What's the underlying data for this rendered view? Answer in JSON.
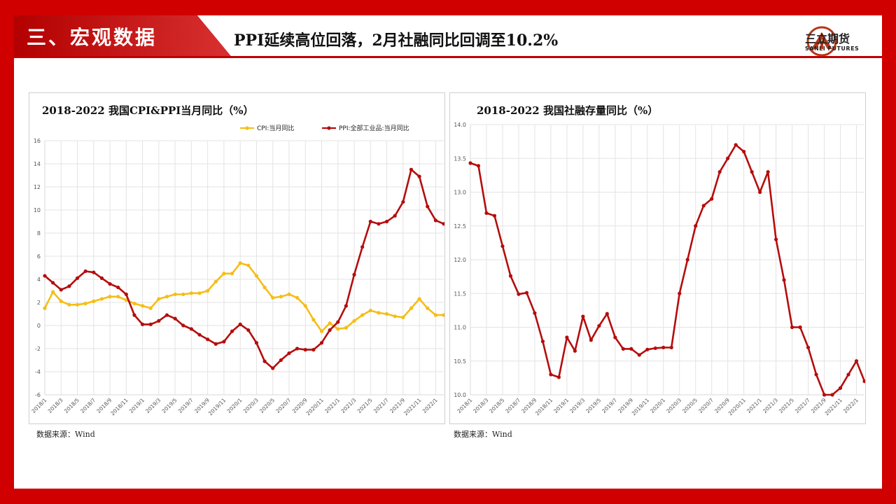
{
  "header": {
    "section_title": "三、宏观数据",
    "headline": "PPI延续高位回落，2月社融同比回调至10.2%",
    "logo_cn": "三立期货",
    "logo_en": "SANLI FUTURES"
  },
  "colors": {
    "brand_red": "#c00000",
    "cpi": "#f5be16",
    "ppi": "#b50d0d",
    "tsf": "#b50d0d"
  },
  "left_panel": {
    "source": "数据来源：Wind"
  },
  "right_panel": {
    "source": "数据来源：Wind"
  },
  "chart_data": [
    {
      "type": "line",
      "title": "2018-2022 我国CPI&PPI当月同比（%）",
      "x": [
        "2018/1",
        "2018/2",
        "2018/3",
        "2018/4",
        "2018/5",
        "2018/6",
        "2018/7",
        "2018/8",
        "2018/9",
        "2018/10",
        "2018/11",
        "2018/12",
        "2019/1",
        "2019/2",
        "2019/3",
        "2019/4",
        "2019/5",
        "2019/6",
        "2019/7",
        "2019/8",
        "2019/9",
        "2019/10",
        "2019/11",
        "2019/12",
        "2020/1",
        "2020/2",
        "2020/3",
        "2020/4",
        "2020/5",
        "2020/6",
        "2020/7",
        "2020/8",
        "2020/9",
        "2020/10",
        "2020/11",
        "2020/12",
        "2021/1",
        "2021/2",
        "2021/3",
        "2021/4",
        "2021/5",
        "2021/6",
        "2021/7",
        "2021/8",
        "2021/9",
        "2021/10",
        "2021/11",
        "2021/12",
        "2022/1",
        "2022/2"
      ],
      "xticks": [
        "2018/1",
        "2018/3",
        "2018/5",
        "2018/7",
        "2018/9",
        "2018/11",
        "2019/1",
        "2019/3",
        "2019/5",
        "2019/7",
        "2019/9",
        "2019/11",
        "2020/1",
        "2020/3",
        "2020/5",
        "2020/7",
        "2020/9",
        "2020/11",
        "2021/1",
        "2021/3",
        "2021/5",
        "2021/7",
        "2021/9",
        "2021/11",
        "2022/1"
      ],
      "ylim": [
        -6,
        16
      ],
      "yticks": [
        -6,
        -4,
        -2,
        0,
        2,
        4,
        6,
        8,
        10,
        12,
        14,
        16
      ],
      "grid": true,
      "legend": "top-right",
      "series": [
        {
          "name": "CPI:当月同比",
          "color": "#f5be16",
          "values": [
            1.5,
            2.9,
            2.1,
            1.8,
            1.8,
            1.9,
            2.1,
            2.3,
            2.5,
            2.5,
            2.2,
            1.9,
            1.7,
            1.5,
            2.3,
            2.5,
            2.7,
            2.7,
            2.8,
            2.8,
            3.0,
            3.8,
            4.5,
            4.5,
            5.4,
            5.2,
            4.3,
            3.3,
            2.4,
            2.5,
            2.7,
            2.4,
            1.7,
            0.5,
            -0.5,
            0.2,
            -0.3,
            -0.2,
            0.4,
            0.9,
            1.3,
            1.1,
            1.0,
            0.8,
            0.7,
            1.5,
            2.3,
            1.5,
            0.9,
            0.9
          ]
        },
        {
          "name": "PPI:全部工业品:当月同比",
          "color": "#b50d0d",
          "values": [
            4.3,
            3.7,
            3.1,
            3.4,
            4.1,
            4.7,
            4.6,
            4.1,
            3.6,
            3.3,
            2.7,
            0.9,
            0.1,
            0.1,
            0.4,
            0.9,
            0.6,
            0.0,
            -0.3,
            -0.8,
            -1.2,
            -1.6,
            -1.4,
            -0.5,
            0.1,
            -0.4,
            -1.5,
            -3.1,
            -3.7,
            -3.0,
            -2.4,
            -2.0,
            -2.1,
            -2.1,
            -1.5,
            -0.4,
            0.3,
            1.7,
            4.4,
            6.8,
            9.0,
            8.8,
            9.0,
            9.5,
            10.7,
            13.5,
            12.9,
            10.3,
            9.1,
            8.8
          ]
        }
      ]
    },
    {
      "type": "line",
      "title": "2018-2022 我国社融存量同比（%）",
      "x": [
        "2018/1",
        "2018/2",
        "2018/3",
        "2018/4",
        "2018/5",
        "2018/6",
        "2018/7",
        "2018/8",
        "2018/9",
        "2018/10",
        "2018/11",
        "2018/12",
        "2019/1",
        "2019/2",
        "2019/3",
        "2019/4",
        "2019/5",
        "2019/6",
        "2019/7",
        "2019/8",
        "2019/9",
        "2019/10",
        "2019/11",
        "2019/12",
        "2020/1",
        "2020/2",
        "2020/3",
        "2020/4",
        "2020/5",
        "2020/6",
        "2020/7",
        "2020/8",
        "2020/9",
        "2020/10",
        "2020/11",
        "2020/12",
        "2021/1",
        "2021/2",
        "2021/3",
        "2021/4",
        "2021/5",
        "2021/6",
        "2021/7",
        "2021/8",
        "2021/9",
        "2021/10",
        "2021/11",
        "2021/12",
        "2022/1",
        "2022/2"
      ],
      "xticks": [
        "2018/1",
        "2018/3",
        "2018/5",
        "2018/7",
        "2018/9",
        "2018/11",
        "2019/1",
        "2019/3",
        "2019/5",
        "2019/7",
        "2019/9",
        "2019/11",
        "2020/1",
        "2020/3",
        "2020/5",
        "2020/7",
        "2020/9",
        "2020/11",
        "2021/1",
        "2021/3",
        "2021/5",
        "2021/7",
        "2021/9",
        "2021/11",
        "2022/1"
      ],
      "ylim": [
        10.0,
        14.0
      ],
      "yticks": [
        "10.0",
        "10.5",
        "11.0",
        "11.5",
        "12.0",
        "12.5",
        "13.0",
        "13.5",
        "14.0"
      ],
      "grid": true,
      "series": [
        {
          "color": "#b50d0d",
          "values": [
            13.43,
            13.39,
            12.69,
            12.65,
            12.2,
            11.76,
            11.49,
            11.51,
            11.21,
            10.79,
            10.3,
            10.26,
            10.85,
            10.65,
            11.16,
            10.81,
            11.02,
            11.2,
            10.85,
            10.68,
            10.68,
            10.59,
            10.67,
            10.69,
            10.7,
            10.7,
            11.5,
            12.0,
            12.5,
            12.8,
            12.9,
            13.3,
            13.5,
            13.7,
            13.6,
            13.3,
            13.0,
            13.3,
            12.3,
            11.7,
            11.0,
            11.0,
            10.7,
            10.3,
            10.0,
            10.0,
            10.1,
            10.3,
            10.5,
            10.2
          ]
        }
      ]
    }
  ]
}
